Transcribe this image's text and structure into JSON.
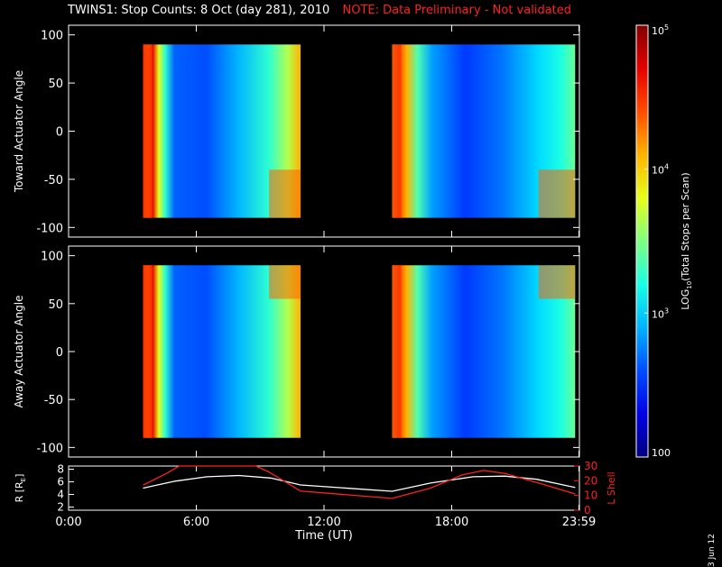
{
  "header": {
    "title": "TWINS1: Stop Counts:  8 Oct (day 281), 2010",
    "note": "NOTE: Data Preliminary - Not validated"
  },
  "footer": {
    "date_stamp": "3 Jun 12"
  },
  "colors": {
    "background": "#000000",
    "foreground": "#ffffff",
    "note": "#ff2020",
    "r_line": "#ffffff",
    "lshell_line": "#ff2020"
  },
  "chart_data": [
    {
      "type": "heatmap",
      "panel": "toward",
      "ylabel": "Toward Actuator Angle",
      "ylim": [
        -110,
        110
      ],
      "yticks": [
        100,
        50,
        0,
        -50,
        -100
      ],
      "x_range_hours": [
        0,
        24
      ],
      "data_blocks": [
        {
          "start_hour": 3.5,
          "end_hour": 10.9,
          "angle_range": [
            -90,
            90
          ]
        },
        {
          "start_hour": 15.2,
          "end_hour": 23.8,
          "angle_range": [
            -90,
            90
          ]
        }
      ],
      "colorbar_scale": "log"
    },
    {
      "type": "heatmap",
      "panel": "away",
      "ylabel": "Away Actuator Angle",
      "ylim": [
        -110,
        110
      ],
      "yticks": [
        100,
        50,
        0,
        -50,
        -100
      ],
      "x_range_hours": [
        0,
        24
      ],
      "data_blocks": [
        {
          "start_hour": 3.5,
          "end_hour": 10.9,
          "angle_range": [
            -90,
            90
          ]
        },
        {
          "start_hour": 15.2,
          "end_hour": 23.8,
          "angle_range": [
            -90,
            90
          ]
        }
      ],
      "colorbar_scale": "log"
    },
    {
      "type": "line",
      "panel": "orbit",
      "xlabel": "Time (UT)",
      "x_ticklabels": [
        "0:00",
        "6:00",
        "12:00",
        "18:00",
        "23:59"
      ],
      "x_tick_hours": [
        0,
        6,
        12,
        18,
        23.98
      ],
      "xlim": [
        0,
        24
      ],
      "left_axis": {
        "label": "R [R",
        "label_sub": "E",
        "label_end": "]",
        "ylim": [
          1.5,
          8.5
        ],
        "yticks": [
          2,
          4,
          6,
          8
        ]
      },
      "right_axis": {
        "label": "L Shell",
        "ylim": [
          0,
          30
        ],
        "yticks": [
          0,
          10,
          20,
          30
        ]
      },
      "series": [
        {
          "axis": "left",
          "color": "#ffffff",
          "x": [
            3.5,
            5,
            6.5,
            8,
            9.5,
            10.9,
            15.2,
            17,
            19,
            20.5,
            22,
            23.8
          ],
          "y": [
            5.0,
            6.1,
            6.8,
            7.0,
            6.6,
            5.5,
            4.5,
            5.8,
            6.8,
            6.9,
            6.4,
            5.1
          ]
        },
        {
          "axis": "right",
          "color": "#ff2020",
          "x": [
            3.5,
            4.6,
            5.2,
            8.8,
            9.4,
            10.9,
            15.2,
            17,
            18.5,
            19.5,
            20.5,
            22.2,
            23.8
          ],
          "y": [
            17,
            25,
            31,
            31,
            26,
            13,
            8,
            15,
            24,
            27,
            25,
            18,
            11
          ]
        }
      ]
    },
    {
      "type": "colorbar",
      "label": "LOG",
      "label_sub": "10",
      "label_rest": "(Total Stops per Scan)",
      "scale": "log",
      "range": [
        100,
        100000
      ],
      "tick_values": [
        100,
        1000,
        10000,
        100000
      ],
      "tick_labels": [
        {
          "base": "100",
          "exp": ""
        },
        {
          "base": "10",
          "exp": "3"
        },
        {
          "base": "10",
          "exp": "4"
        },
        {
          "base": "10",
          "exp": "5"
        }
      ]
    }
  ]
}
